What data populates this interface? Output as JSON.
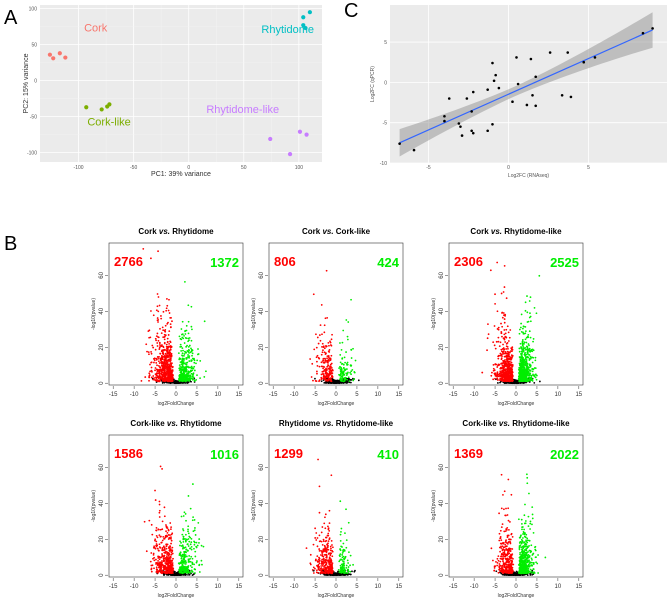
{
  "panel_letters": {
    "a": "A",
    "b": "B",
    "c": "C"
  },
  "chart_data": [
    {
      "id": "A",
      "type": "scatter",
      "title": "",
      "xlabel": "PC1: 39% variance",
      "ylabel": "PC2: 15% variance",
      "xlim": [
        -135,
        121
      ],
      "ylim": [
        -113,
        105
      ],
      "xticks": [
        -100,
        -50,
        0,
        50,
        100
      ],
      "yticks": [
        -100,
        -50,
        0,
        50,
        100
      ],
      "grid": true,
      "groups": [
        {
          "name": "Cork",
          "color": "#F8766D",
          "label_at": [
            -95,
            68
          ],
          "points": [
            [
              -126,
              36
            ],
            [
              -123,
              31
            ],
            [
              -117,
              38
            ],
            [
              -112,
              32
            ]
          ]
        },
        {
          "name": "Cork-like",
          "color": "#7CAE00",
          "label_at": [
            -92,
            -62
          ],
          "points": [
            [
              -93,
              -37
            ],
            [
              -79,
              -40
            ],
            [
              -74,
              -36
            ],
            [
              -72,
              -33
            ]
          ]
        },
        {
          "name": "Rhytidome",
          "color": "#00BFC4",
          "label_at": [
            66,
            66
          ],
          "points": [
            [
              104,
              88
            ],
            [
              104,
              77
            ],
            [
              106,
              73
            ],
            [
              110,
              95
            ]
          ]
        },
        {
          "name": "Rhytidome-like",
          "color": "#C77CFF",
          "label_at": [
            16,
            -45
          ],
          "points": [
            [
              74,
              -81
            ],
            [
              92,
              -102
            ],
            [
              101,
              -71
            ],
            [
              107,
              -75
            ]
          ]
        }
      ]
    },
    {
      "id": "C",
      "type": "scatter",
      "xlabel": "Log2FC (RNAseq)",
      "ylabel": "Log2FC (qPCR)",
      "xlim": [
        -7.4,
        9.9
      ],
      "ylim": [
        -10,
        9.6
      ],
      "xticks": [
        -5,
        0,
        5
      ],
      "yticks": [
        -10,
        -5,
        0,
        5
      ],
      "grid": true,
      "point_color": "#000000",
      "fit_color": "#3366FF",
      "band_color": "#999999",
      "fit": {
        "slope": 0.886,
        "intercept": -1.47,
        "x_range": [
          -6.8,
          9.0
        ],
        "ci_halfwidth_at_ends": [
          1.7,
          2.2
        ],
        "ci_halfwidth_min": 0.6
      },
      "points": [
        [
          -6.8,
          -7.6
        ],
        [
          -5.9,
          -8.4
        ],
        [
          -4.0,
          -4.2
        ],
        [
          -4.0,
          -4.8
        ],
        [
          -3.7,
          -2.0
        ],
        [
          -3.1,
          -5.1
        ],
        [
          -3.0,
          -5.5
        ],
        [
          -2.9,
          -6.6
        ],
        [
          -2.6,
          -2.0
        ],
        [
          -2.3,
          -3.6
        ],
        [
          -2.3,
          -6.0
        ],
        [
          -2.2,
          -6.3
        ],
        [
          -2.2,
          -1.2
        ],
        [
          -1.3,
          -6.0
        ],
        [
          -1.3,
          -0.9
        ],
        [
          -1.0,
          -5.2
        ],
        [
          -1.0,
          2.4
        ],
        [
          -0.8,
          0.9
        ],
        [
          -0.9,
          0.2
        ],
        [
          -0.6,
          -0.7
        ],
        [
          0.25,
          -2.4
        ],
        [
          0.5,
          3.1
        ],
        [
          0.6,
          -0.2
        ],
        [
          1.15,
          -2.8
        ],
        [
          1.4,
          2.9
        ],
        [
          1.5,
          -1.6
        ],
        [
          1.7,
          0.7
        ],
        [
          1.7,
          -2.9
        ],
        [
          2.6,
          3.7
        ],
        [
          3.35,
          -1.6
        ],
        [
          3.7,
          3.7
        ],
        [
          3.9,
          -1.8
        ],
        [
          4.7,
          2.5
        ],
        [
          5.4,
          3.1
        ],
        [
          8.4,
          6.1
        ],
        [
          9.0,
          6.7
        ]
      ]
    },
    {
      "id": "B",
      "type": "scatter",
      "subtype": "volcano",
      "xlabel": "log2FoldChange",
      "ylabel": "-log10(pvalue)",
      "xlim": [
        -16,
        16
      ],
      "ylim": [
        -1,
        78
      ],
      "xticks": [
        -15,
        -10,
        -5,
        0,
        5,
        10,
        15
      ],
      "yticks": [
        0,
        20,
        40,
        60
      ],
      "down_color": "#FF0000",
      "up_color": "#00EE00",
      "ns_color": "#000000",
      "panels": [
        {
          "title_a": "Cork",
          "title_b": "Rhytidome",
          "down": 2766,
          "up": 1372,
          "down_spread": 4.2,
          "up_spread": 3.3,
          "ymax": 75
        },
        {
          "title_a": "Cork",
          "title_b": "Cork-like",
          "down": 806,
          "up": 424,
          "down_spread": 3.8,
          "up_spread": 3.0,
          "ymax": 68
        },
        {
          "title_a": "Cork",
          "title_b": "Rhytidome-like",
          "down": 2306,
          "up": 2525,
          "down_spread": 3.6,
          "up_spread": 2.6,
          "ymax": 76
        },
        {
          "title_a": "Cork-like",
          "title_b": "Rhytidome",
          "down": 1586,
          "up": 1016,
          "down_spread": 4.0,
          "up_spread": 3.5,
          "ymax": 70
        },
        {
          "title_a": "Rhytidome",
          "title_b": "Rhytidome-like",
          "down": 1299,
          "up": 410,
          "down_spread": 3.4,
          "up_spread": 2.4,
          "ymax": 72
        },
        {
          "title_a": "Cork-like",
          "title_b": "Rhytidome-like",
          "down": 1369,
          "up": 2022,
          "down_spread": 3.2,
          "up_spread": 2.6,
          "ymax": 76
        }
      ],
      "vs_label": "vs."
    }
  ]
}
